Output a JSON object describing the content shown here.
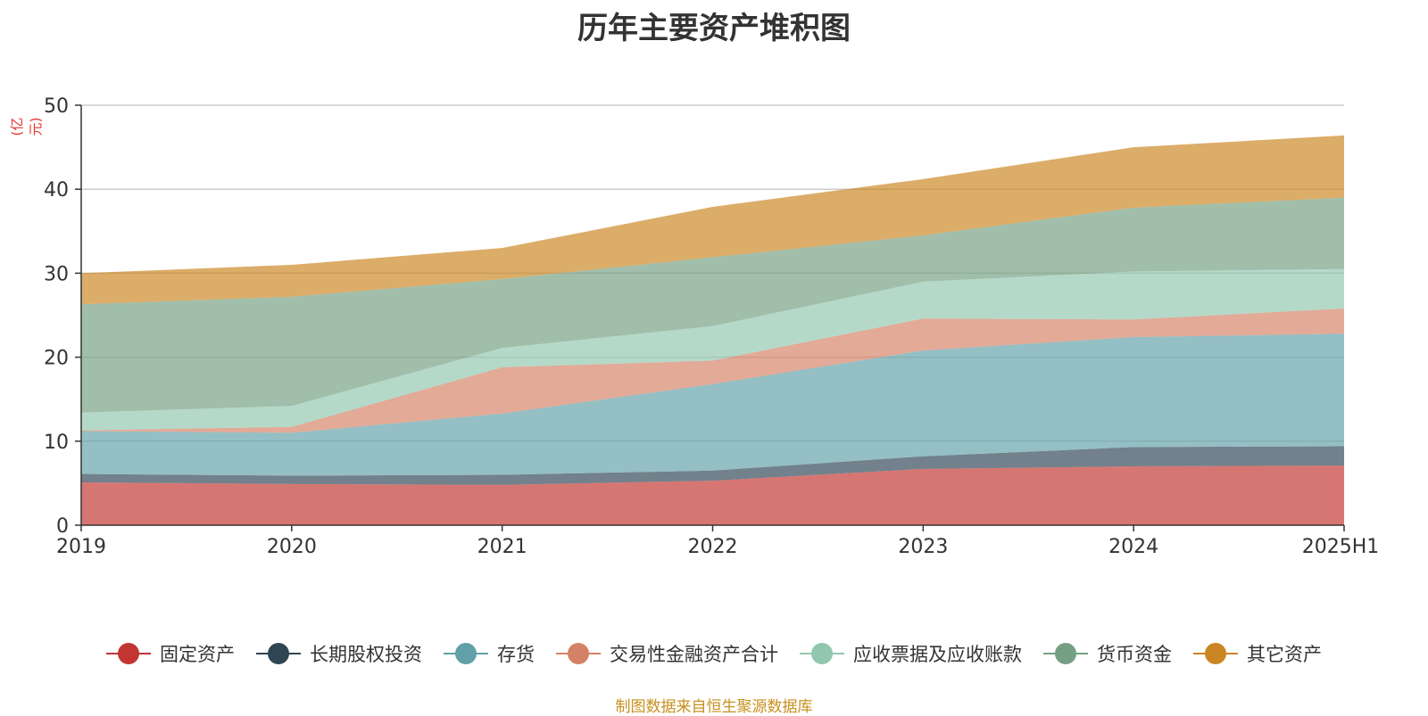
{
  "chart_data": {
    "type": "area",
    "stacked": true,
    "title": "历年主要资产堆积图",
    "unit_label": "(亿元)",
    "categories": [
      "2019",
      "2020",
      "2021",
      "2022",
      "2023",
      "2024",
      "2025H1"
    ],
    "ylim": [
      0,
      50
    ],
    "yticks": [
      0,
      10,
      20,
      30,
      40,
      50
    ],
    "grid": true,
    "legend_position": "bottom",
    "series": [
      {
        "name": "固定资产",
        "color": "#c23531",
        "values": [
          5.1,
          4.9,
          4.8,
          5.3,
          6.7,
          7.0,
          7.1
        ]
      },
      {
        "name": "长期股权投资",
        "color": "#2f4554",
        "values": [
          1.0,
          1.0,
          1.2,
          1.2,
          1.5,
          2.3,
          2.3
        ]
      },
      {
        "name": "存货",
        "color": "#61a0a8",
        "values": [
          5.1,
          5.1,
          7.3,
          10.3,
          12.6,
          13.1,
          13.4
        ]
      },
      {
        "name": "交易性金融资产合计",
        "color": "#d48265",
        "values": [
          0.1,
          0.7,
          5.5,
          2.8,
          3.8,
          2.1,
          3.0
        ]
      },
      {
        "name": "应收票据及应收账款",
        "color": "#91c7ae",
        "values": [
          2.1,
          2.5,
          2.3,
          4.1,
          4.4,
          5.7,
          4.7
        ]
      },
      {
        "name": "货币资金",
        "color": "#749f83",
        "values": [
          12.9,
          13.0,
          8.2,
          8.2,
          5.5,
          7.6,
          8.5
        ]
      },
      {
        "name": "其它资产",
        "color": "#ca8622",
        "values": [
          3.7,
          3.8,
          3.7,
          6.0,
          6.7,
          7.2,
          7.4
        ]
      }
    ]
  },
  "source_note": "制图数据来自恒生聚源数据库"
}
